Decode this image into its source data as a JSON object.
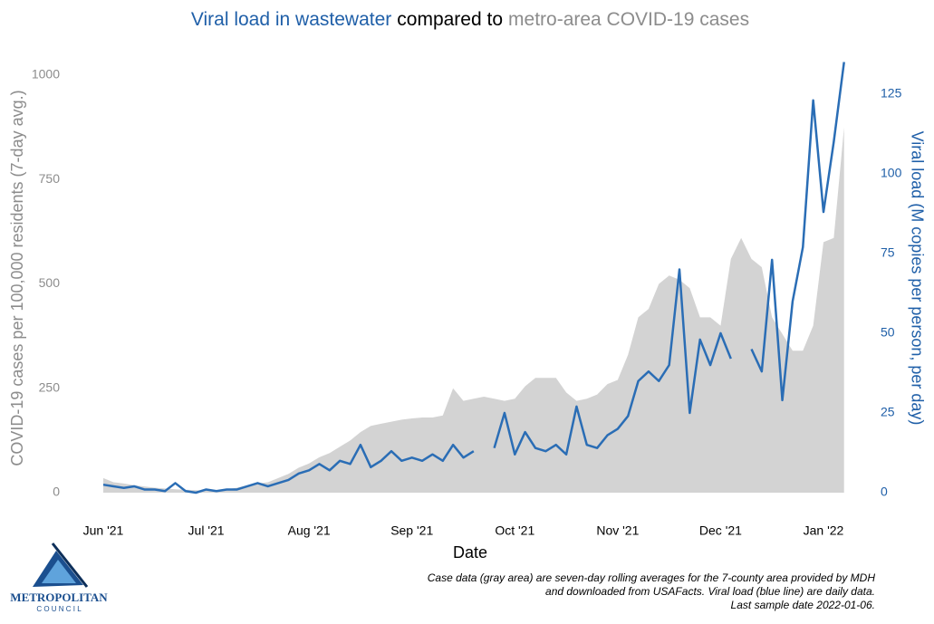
{
  "chart_data": {
    "type": "line",
    "title_parts": [
      {
        "text": "Viral load in  wastewater",
        "color": "#1f5fa8"
      },
      {
        "text": "compared to",
        "color": "#000000"
      },
      {
        "text": "metro-area COVID-19 cases",
        "color": "#8c8c8c"
      }
    ],
    "x_label": "Date",
    "y_label": "COVID-19 cases per 100,000 residents (7-day avg.)",
    "y2_label": "Viral load (M copies per person, per day)",
    "footnote": [
      "Case data (gray area) are seven-day rolling averages for the 7-county area provided by MDH",
      "and downloaded from USAFacts. Viral load (blue line) are daily data.",
      "Last sample date 2022-01-06."
    ],
    "logo": {
      "name": "METROPOLITAN",
      "sub": "C O U N C I L"
    },
    "categories": [
      "Jun '21",
      null,
      null,
      null,
      null,
      null,
      null,
      null,
      null,
      null,
      "Jul '21",
      null,
      null,
      null,
      null,
      null,
      null,
      null,
      null,
      null,
      "Aug '21",
      null,
      null,
      null,
      null,
      null,
      null,
      null,
      null,
      null,
      "Sep '21",
      null,
      null,
      null,
      null,
      null,
      null,
      null,
      null,
      null,
      "Oct '21",
      null,
      null,
      null,
      null,
      null,
      null,
      null,
      null,
      null,
      "Nov '21",
      null,
      null,
      null,
      null,
      null,
      null,
      null,
      null,
      null,
      "Dec '21",
      null,
      null,
      null,
      null,
      null,
      null,
      null,
      null,
      null,
      "Jan '22",
      null,
      null
    ],
    "series": [
      {
        "type": "area",
        "axis": "y",
        "color": "#d3d3d3",
        "values": [
          35,
          25,
          22,
          18,
          15,
          12,
          10,
          8,
          7,
          6,
          5,
          6,
          8,
          12,
          18,
          22,
          25,
          35,
          45,
          60,
          70,
          85,
          95,
          110,
          125,
          145,
          160,
          165,
          170,
          175,
          178,
          180,
          180,
          185,
          250,
          220,
          225,
          230,
          225,
          220,
          225,
          255,
          275,
          275,
          275,
          240,
          220,
          225,
          235,
          260,
          270,
          330,
          420,
          440,
          500,
          520,
          510,
          490,
          420,
          420,
          400,
          560,
          610,
          560,
          540,
          420,
          380,
          340,
          340,
          400,
          600,
          610,
          875
        ]
      },
      {
        "type": "line",
        "axis": "y2",
        "color": "#2a6db5",
        "values": [
          2.5,
          2,
          1.5,
          2,
          1,
          1,
          0.5,
          3,
          0.5,
          0,
          1,
          0.5,
          1,
          1,
          2,
          3,
          2,
          3,
          4,
          6,
          7,
          9,
          7,
          10,
          9,
          15,
          8,
          10,
          13,
          10,
          11,
          10,
          12,
          10,
          15,
          11,
          13,
          null,
          14,
          25,
          12,
          19,
          14,
          13,
          15,
          12,
          27,
          15,
          14,
          18,
          20,
          24,
          35,
          38,
          35,
          40,
          70,
          25,
          48,
          40,
          50,
          42,
          null,
          45,
          38,
          73,
          29,
          60,
          77,
          123,
          88,
          110,
          135
        ]
      }
    ],
    "ylim": [
      0,
      1039
    ],
    "yticks": [
      0,
      250,
      500,
      750,
      1000
    ],
    "y2lim": [
      0,
      136
    ],
    "y2ticks": [
      0,
      25,
      50,
      75,
      100,
      125
    ],
    "grid": false
  }
}
